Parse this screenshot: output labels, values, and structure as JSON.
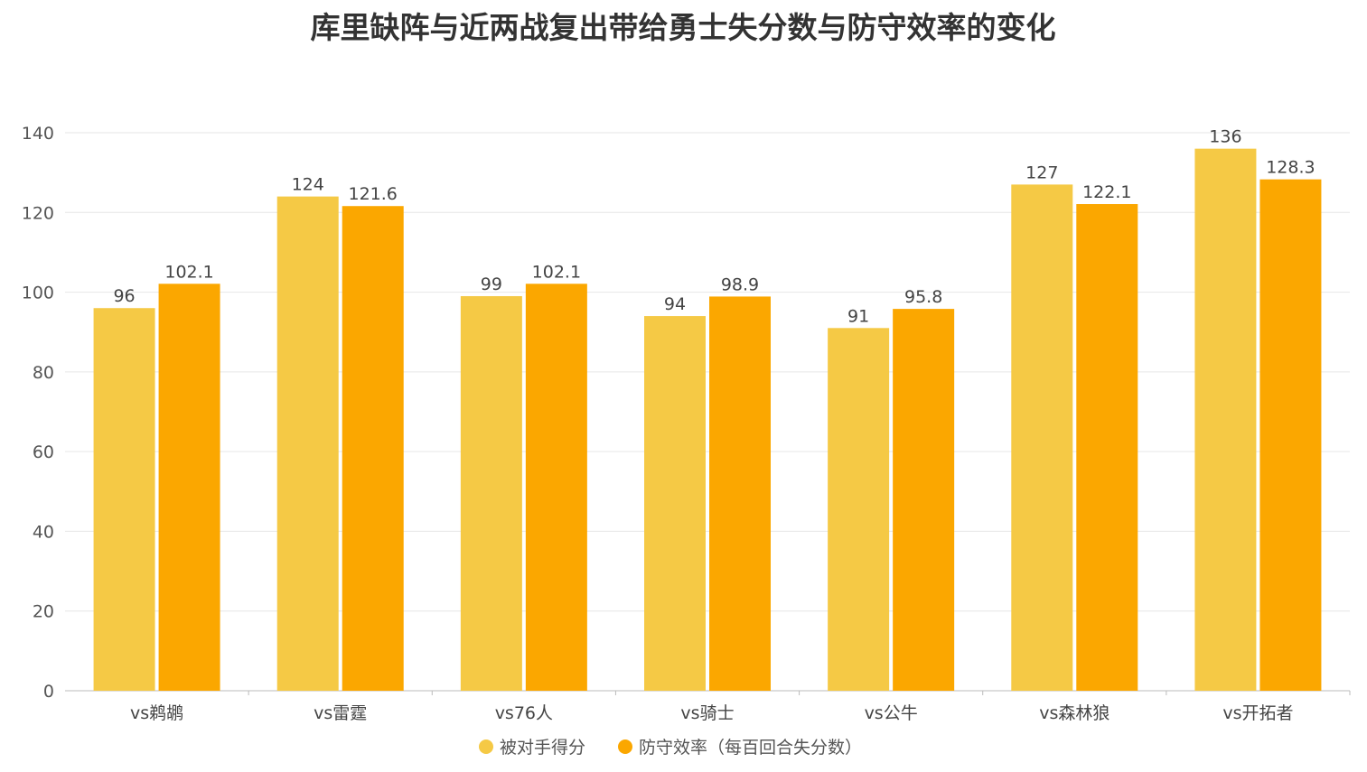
{
  "chart_data": {
    "type": "bar",
    "title": "库里缺阵与近两战复出带给勇士失分数与防守效率的变化",
    "xlabel": "",
    "ylabel": "",
    "ylim": [
      0,
      140
    ],
    "yticks": [
      0,
      20,
      40,
      60,
      80,
      100,
      120,
      140
    ],
    "grid": true,
    "legend_position": "bottom",
    "categories": [
      "vs鹈鹕",
      "vs雷霆",
      "vs76人",
      "vs骑士",
      "vs公牛",
      "vs森林狼",
      "vs开拓者"
    ],
    "series": [
      {
        "name": "被对手得分",
        "color": "#F5C945",
        "values": [
          96,
          124,
          99,
          94,
          91,
          127,
          136
        ]
      },
      {
        "name": "防守效率（每百回合失分数）",
        "color": "#FBA700",
        "values": [
          102.1,
          121.6,
          102.1,
          98.9,
          95.8,
          122.1,
          128.3
        ]
      }
    ]
  }
}
